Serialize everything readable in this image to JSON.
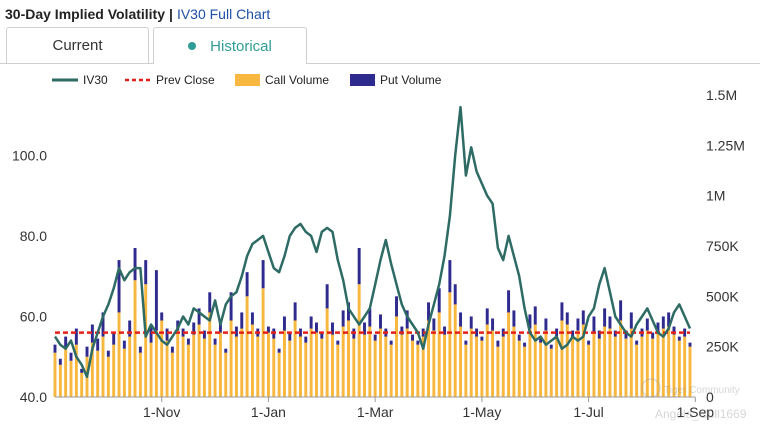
{
  "header": {
    "title": "30-Day Implied Volatility",
    "separator": "|",
    "link": "IV30 Full Chart"
  },
  "tabs": [
    {
      "label": "Current"
    },
    {
      "label": "Historical"
    }
  ],
  "watermark": {
    "line1": "Tiger Community",
    "line2": "Angela_Cull1669"
  },
  "colors": {
    "iv": "#2e6b64",
    "prev": "#e32119",
    "call": "#f8b73e",
    "put": "#2e2a8e",
    "accent": "#2f9c95"
  },
  "chart_data": {
    "type": "line+bar",
    "legend": [
      "IV30",
      "Prev Close",
      "Call Volume",
      "Put Volume"
    ],
    "x_tick_labels": [
      "1-Nov",
      "1-Jan",
      "1-Mar",
      "1-May",
      "1-Jul",
      "1-Sep"
    ],
    "x_tick_index": [
      20,
      40,
      60,
      80,
      100,
      120
    ],
    "y_left": {
      "ticks": [
        "40.0",
        "60.0",
        "80.0",
        "100.0"
      ],
      "tick_values": [
        40,
        60,
        80,
        100
      ],
      "range": [
        40,
        115
      ]
    },
    "y_right": {
      "ticks": [
        "0",
        "250K",
        "500K",
        "750K",
        "1M",
        "1.25M",
        "1.5M"
      ],
      "tick_values": [
        0,
        250000,
        500000,
        750000,
        1000000,
        1250000,
        1500000
      ],
      "range": [
        0,
        1500000
      ]
    },
    "prev_close": 56,
    "iv30": [
      55,
      53,
      52,
      54,
      50,
      48,
      45,
      52,
      56,
      60,
      63,
      67,
      72,
      69,
      71,
      72,
      72,
      55,
      58,
      56,
      54,
      53,
      55,
      57,
      60,
      58,
      62,
      61,
      60,
      59,
      64,
      58,
      63,
      65,
      66,
      70,
      75,
      78,
      79,
      80,
      76,
      72,
      71,
      75,
      80,
      82,
      83,
      81,
      80,
      76,
      81,
      82,
      81,
      74,
      69,
      62,
      60,
      58,
      60,
      62,
      68,
      74,
      79,
      73,
      68,
      63,
      60,
      58,
      56,
      52,
      58,
      63,
      68,
      75,
      85,
      100,
      112,
      95,
      102,
      96,
      93,
      90,
      88,
      77,
      74,
      80,
      75,
      70,
      62,
      56,
      54,
      55,
      53,
      54,
      55,
      52,
      53,
      55,
      54,
      55,
      60,
      62,
      68,
      72,
      66,
      60,
      58,
      56,
      55,
      58,
      60,
      62,
      59,
      56,
      55,
      57,
      61,
      63,
      60,
      57
    ],
    "call_volume": [
      220,
      160,
      240,
      180,
      260,
      120,
      200,
      270,
      230,
      300,
      200,
      260,
      420,
      240,
      300,
      580,
      220,
      560,
      270,
      330,
      380,
      280,
      220,
      330,
      300,
      260,
      310,
      360,
      290,
      420,
      260,
      320,
      220,
      380,
      300,
      340,
      500,
      360,
      300,
      540,
      320,
      290,
      220,
      330,
      280,
      380,
      300,
      270,
      340,
      320,
      290,
      440,
      310,
      260,
      350,
      380,
      290,
      560,
      310,
      350,
      280,
      340,
      300,
      260,
      400,
      310,
      340,
      280,
      260,
      300,
      380,
      330,
      420,
      310,
      520,
      460,
      350,
      260,
      340,
      300,
      280,
      360,
      330,
      250,
      300,
      420,
      350,
      280,
      250,
      340,
      360,
      270,
      330,
      240,
      300,
      380,
      360,
      300,
      330,
      360,
      260,
      320,
      290,
      350,
      340,
      300,
      380,
      290,
      340,
      260,
      300,
      330,
      290,
      320,
      340,
      350,
      310,
      280,
      300,
      250
    ],
    "put_volume": [
      40,
      30,
      60,
      40,
      80,
      20,
      50,
      90,
      60,
      120,
      30,
      60,
      260,
      40,
      80,
      160,
      30,
      120,
      80,
      300,
      40,
      60,
      30,
      50,
      40,
      30,
      60,
      80,
      40,
      100,
      30,
      60,
      20,
      140,
      50,
      80,
      120,
      60,
      40,
      140,
      30,
      50,
      20,
      70,
      40,
      90,
      40,
      30,
      60,
      50,
      30,
      120,
      60,
      20,
      80,
      90,
      50,
      180,
      60,
      90,
      30,
      70,
      40,
      20,
      100,
      40,
      90,
      30,
      20,
      40,
      90,
      60,
      120,
      40,
      160,
      100,
      70,
      20,
      60,
      40,
      20,
      80,
      60,
      30,
      40,
      110,
      80,
      30,
      20,
      70,
      90,
      20,
      60,
      20,
      40,
      90,
      60,
      30,
      60,
      70,
      20,
      80,
      40,
      90,
      60,
      30,
      100,
      40,
      80,
      20,
      40,
      60,
      30,
      50,
      60,
      70,
      40,
      20,
      40,
      20
    ]
  }
}
